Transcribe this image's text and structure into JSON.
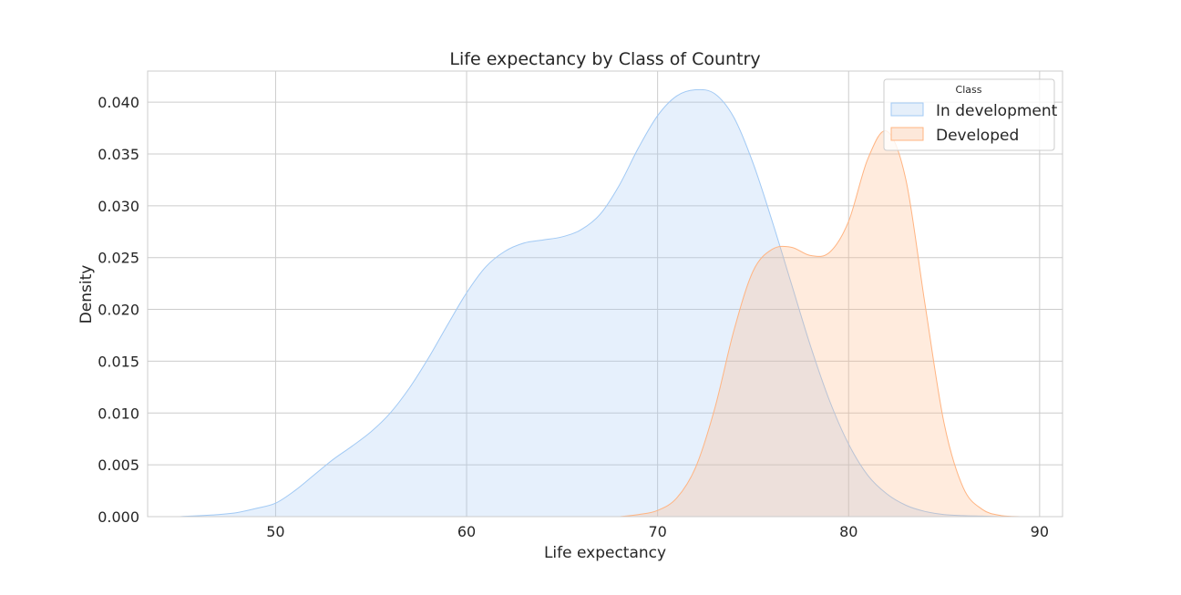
{
  "chart_data": {
    "type": "area",
    "title": "Life expectancy by Class of Country",
    "xlabel": "Life expectancy",
    "ylabel": "Density",
    "xlim": [
      43.3,
      91.2
    ],
    "ylim": [
      0,
      0.043
    ],
    "xticks": [
      "50",
      "60",
      "70",
      "80",
      "90"
    ],
    "yticks": [
      "0.000",
      "0.005",
      "0.010",
      "0.015",
      "0.020",
      "0.025",
      "0.030",
      "0.035",
      "0.040"
    ],
    "grid": true,
    "legend": {
      "title": "Class",
      "placement": "top-right",
      "entries": [
        "In development",
        "Developed"
      ]
    },
    "series": [
      {
        "name": "In development",
        "fill": "#e5effa",
        "stroke": "#a1c9f4",
        "x": [
          45,
          47,
          48,
          49,
          50,
          51,
          52,
          53,
          54,
          55,
          56,
          57,
          58,
          59,
          60,
          61,
          62,
          63,
          64,
          65,
          66,
          67,
          68,
          69,
          70,
          71,
          72,
          73,
          74,
          75,
          76,
          77,
          78,
          79,
          80,
          81,
          82,
          83,
          84,
          85,
          86,
          87,
          88
        ],
        "y": [
          0.0,
          0.0002,
          0.0004,
          0.0008,
          0.0013,
          0.0025,
          0.004,
          0.0055,
          0.0068,
          0.0082,
          0.01,
          0.0124,
          0.0153,
          0.0185,
          0.0216,
          0.0241,
          0.0256,
          0.0264,
          0.0267,
          0.027,
          0.0277,
          0.0292,
          0.032,
          0.0356,
          0.0387,
          0.0406,
          0.0412,
          0.0408,
          0.0385,
          0.0341,
          0.0285,
          0.0225,
          0.0165,
          0.0112,
          0.007,
          0.004,
          0.0022,
          0.0011,
          0.0005,
          0.0002,
          0.0001,
          5e-05,
          0.0
        ]
      },
      {
        "name": "Developed",
        "fill": "#fde8da",
        "stroke": "#ffb482",
        "x": [
          68,
          69,
          70,
          71,
          72,
          73,
          74,
          75,
          76,
          77,
          78,
          79,
          80,
          81,
          82,
          83,
          84,
          85,
          86,
          87,
          88,
          89
        ],
        "y": [
          0.0,
          0.0002,
          0.0006,
          0.0018,
          0.0048,
          0.0105,
          0.018,
          0.0237,
          0.0258,
          0.026,
          0.0252,
          0.0255,
          0.0285,
          0.0345,
          0.0372,
          0.0325,
          0.0205,
          0.009,
          0.0028,
          0.0007,
          0.0001,
          0.0
        ]
      }
    ]
  }
}
